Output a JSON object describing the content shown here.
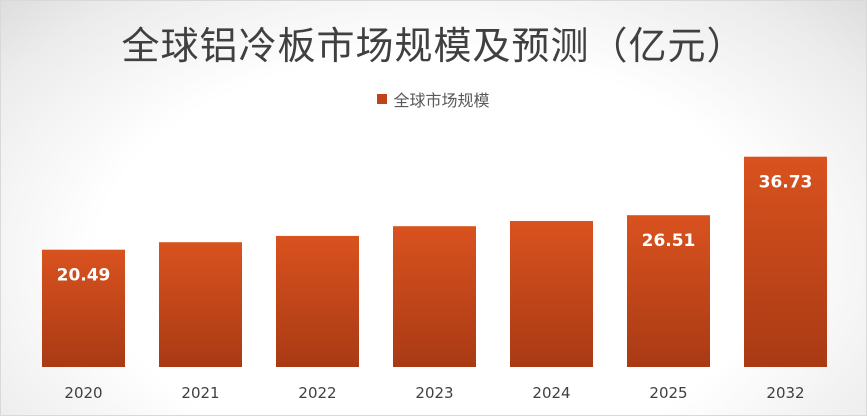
{
  "chart_data": {
    "type": "bar",
    "title": "全球铝冷板市场规模及预测（亿元）",
    "categories": [
      "2020",
      "2021",
      "2022",
      "2023",
      "2024",
      "2025",
      "2032"
    ],
    "series": [
      {
        "name": "全球市场规模",
        "values": [
          20.49,
          21.8,
          22.9,
          24.6,
          25.5,
          26.51,
          36.73
        ],
        "data_labels": [
          "20.49",
          null,
          null,
          null,
          null,
          "26.51",
          "36.73"
        ]
      }
    ],
    "ylim": [
      0,
      38.6
    ],
    "grid": false,
    "legend_position": "top-center",
    "colors": {
      "bar_top": "#d9521f",
      "bar_bottom": "#a93a14",
      "legend_swatch": "#c0441a",
      "label_text": "#ffffff",
      "axis_text": "#404040"
    }
  }
}
